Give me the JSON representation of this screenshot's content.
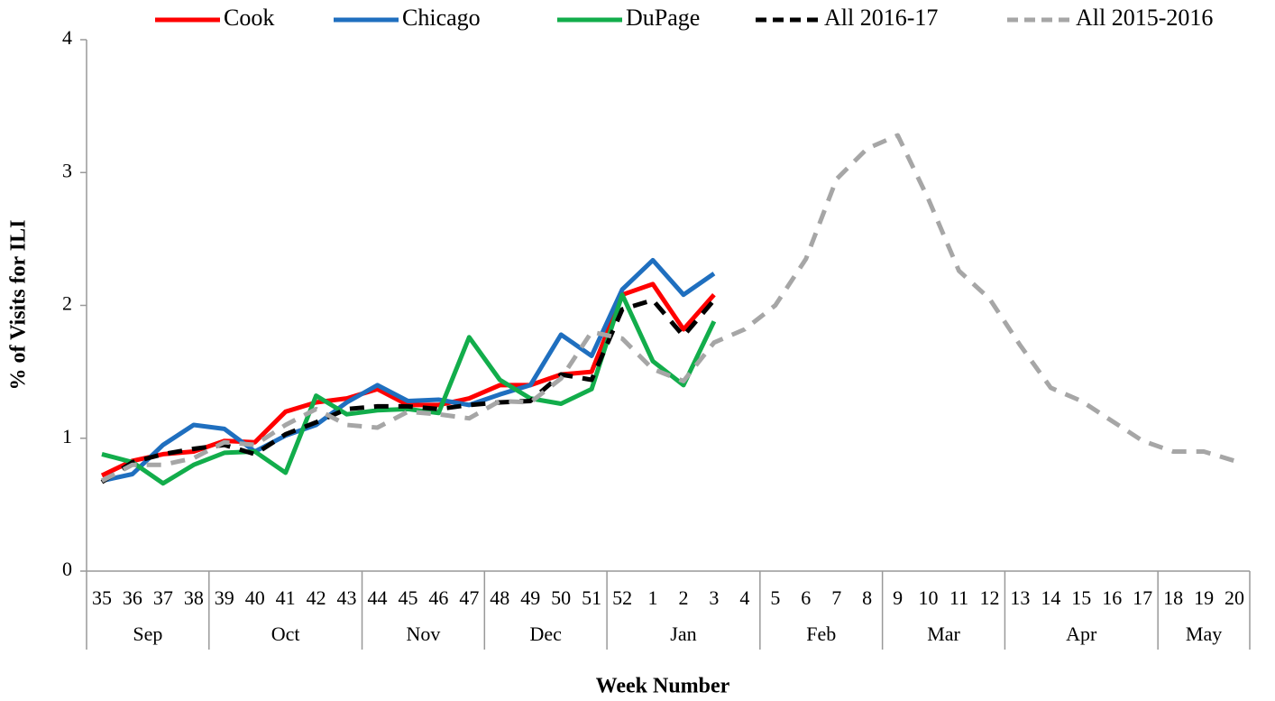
{
  "chart_data": {
    "type": "line",
    "xlabel": "Week Number",
    "ylabel": "% of Visits for ILI",
    "categories": [
      "35",
      "36",
      "37",
      "38",
      "39",
      "40",
      "41",
      "42",
      "43",
      "44",
      "45",
      "46",
      "47",
      "48",
      "49",
      "50",
      "51",
      "52",
      "1",
      "2",
      "3",
      "4",
      "5",
      "6",
      "7",
      "8",
      "9",
      "10",
      "11",
      "12",
      "13",
      "14",
      "15",
      "16",
      "17",
      "18",
      "19",
      "20"
    ],
    "groups": [
      {
        "label": "Sep",
        "count": 4
      },
      {
        "label": "Oct",
        "count": 5
      },
      {
        "label": "Nov",
        "count": 4
      },
      {
        "label": "Dec",
        "count": 4
      },
      {
        "label": "Jan",
        "count": 5
      },
      {
        "label": "Feb",
        "count": 4
      },
      {
        "label": "Mar",
        "count": 4
      },
      {
        "label": "Apr",
        "count": 5
      },
      {
        "label": "May",
        "count": 3
      }
    ],
    "ylim": [
      0,
      4
    ],
    "yticks": [
      0,
      1,
      2,
      3,
      4
    ],
    "grid": false,
    "legend": "top",
    "series": [
      {
        "name": "Cook",
        "color": "#ff0000",
        "dash": false,
        "values": [
          0.72,
          0.83,
          0.88,
          0.9,
          0.98,
          0.97,
          1.2,
          1.27,
          1.3,
          1.37,
          1.25,
          1.25,
          1.3,
          1.4,
          1.4,
          1.48,
          1.5,
          2.08,
          2.16,
          1.82,
          2.08,
          null,
          null,
          null,
          null,
          null,
          null,
          null,
          null,
          null,
          null,
          null,
          null,
          null,
          null,
          null,
          null,
          null
        ]
      },
      {
        "name": "Chicago",
        "color": "#1f6fbf",
        "dash": false,
        "values": [
          0.68,
          0.73,
          0.95,
          1.1,
          1.07,
          0.9,
          1.02,
          1.1,
          1.27,
          1.4,
          1.28,
          1.29,
          1.25,
          1.33,
          1.4,
          1.78,
          1.62,
          2.12,
          2.34,
          2.08,
          2.24,
          null,
          null,
          null,
          null,
          null,
          null,
          null,
          null,
          null,
          null,
          null,
          null,
          null,
          null,
          null,
          null,
          null
        ]
      },
      {
        "name": "DuPage",
        "color": "#12ad4b",
        "dash": false,
        "values": [
          0.88,
          0.82,
          0.66,
          0.8,
          0.89,
          0.9,
          0.74,
          1.32,
          1.18,
          1.21,
          1.22,
          1.19,
          1.76,
          1.44,
          1.3,
          1.26,
          1.37,
          2.08,
          1.58,
          1.4,
          1.88,
          null,
          null,
          null,
          null,
          null,
          null,
          null,
          null,
          null,
          null,
          null,
          null,
          null,
          null,
          null,
          null,
          null
        ]
      },
      {
        "name": "All 2016-17",
        "color": "#000000",
        "dash": true,
        "values": [
          0.67,
          0.82,
          0.88,
          0.92,
          0.95,
          0.88,
          1.03,
          1.12,
          1.22,
          1.24,
          1.24,
          1.22,
          1.25,
          1.27,
          1.28,
          1.48,
          1.44,
          1.97,
          2.04,
          1.77,
          2.04,
          null,
          null,
          null,
          null,
          null,
          null,
          null,
          null,
          null,
          null,
          null,
          null,
          null,
          null,
          null,
          null,
          null
        ]
      },
      {
        "name": "All 2015-2016",
        "color": "#a6a6a6",
        "dash": true,
        "values": [
          0.68,
          0.8,
          0.8,
          0.85,
          0.97,
          0.95,
          1.1,
          1.22,
          1.1,
          1.08,
          1.2,
          1.18,
          1.15,
          1.28,
          1.27,
          1.45,
          1.8,
          1.75,
          1.52,
          1.43,
          1.72,
          1.82,
          2.0,
          2.35,
          2.95,
          3.18,
          3.28,
          2.8,
          2.26,
          2.05,
          1.7,
          1.38,
          1.28,
          1.13,
          0.98,
          0.9,
          0.9,
          0.83
        ]
      }
    ]
  }
}
